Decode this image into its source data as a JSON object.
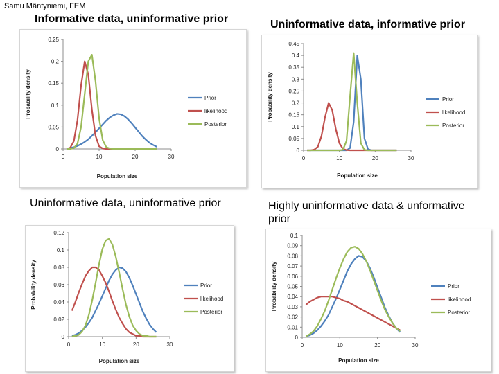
{
  "author": "Samu Mäntyniemi, FEM",
  "colors": {
    "prior": "#4f81bd",
    "likelihood": "#c0504d",
    "posterior": "#9bbb59"
  },
  "chart_data": [
    {
      "type": "line",
      "heading": "Informative data, uninformative prior",
      "xlabel": "Population size",
      "ylabel": "Probability density",
      "xlim": [
        0,
        30
      ],
      "xticks": [
        0,
        10,
        20,
        30
      ],
      "ylim": [
        0,
        0.25
      ],
      "ytick_labels": [
        "0",
        "0.05",
        "0.1",
        "0.15",
        "0.2",
        "0.25"
      ],
      "x": [
        1,
        2,
        3,
        4,
        5,
        6,
        7,
        8,
        9,
        10,
        11,
        12,
        13,
        14,
        15,
        16,
        17,
        18,
        19,
        20,
        21,
        22,
        23,
        24,
        25,
        26
      ],
      "series": [
        {
          "name": "Prior",
          "color": "#4f81bd",
          "values": [
            0.001,
            0.002,
            0.004,
            0.007,
            0.011,
            0.016,
            0.022,
            0.03,
            0.038,
            0.047,
            0.056,
            0.065,
            0.072,
            0.077,
            0.08,
            0.079,
            0.075,
            0.068,
            0.059,
            0.049,
            0.039,
            0.029,
            0.021,
            0.014,
            0.009,
            0.005
          ]
        },
        {
          "name": "likelihood",
          "color": "#c0504d",
          "values": [
            0.0,
            0.003,
            0.018,
            0.066,
            0.145,
            0.2,
            0.17,
            0.09,
            0.03,
            0.006,
            0.001,
            0.0,
            0.0,
            0.0,
            0.0,
            0.0,
            0.0,
            0.0,
            0.0,
            0.0,
            0.0,
            0.0,
            0.0,
            0.0,
            0.0,
            0.0
          ]
        },
        {
          "name": "Posterior",
          "color": "#9bbb59",
          "values": [
            0.0,
            0.0,
            0.002,
            0.012,
            0.05,
            0.125,
            0.2,
            0.215,
            0.155,
            0.07,
            0.02,
            0.004,
            0.001,
            0.0,
            0.0,
            0.0,
            0.0,
            0.0,
            0.0,
            0.0,
            0.0,
            0.0,
            0.0,
            0.0,
            0.0,
            0.0
          ]
        }
      ]
    },
    {
      "type": "line",
      "heading": "Uninformative data, informative prior",
      "xlabel": "Population size",
      "ylabel": "Probability density",
      "xlim": [
        0,
        30
      ],
      "xticks": [
        0,
        10,
        20,
        30
      ],
      "ylim": [
        0,
        0.45
      ],
      "ytick_labels": [
        "0",
        "0.05",
        "0.1",
        "0.15",
        "0.2",
        "0.25",
        "0.3",
        "0.35",
        "0.4",
        "0.45"
      ],
      "x": [
        1,
        2,
        3,
        4,
        5,
        6,
        7,
        8,
        9,
        10,
        11,
        12,
        13,
        14,
        15,
        16,
        17,
        18,
        19,
        20,
        21,
        22,
        23,
        24,
        25,
        26
      ],
      "series": [
        {
          "name": "Prior",
          "color": "#4f81bd",
          "values": [
            0.0,
            0.0,
            0.0,
            0.0,
            0.0,
            0.0,
            0.0,
            0.0,
            0.0,
            0.0,
            0.0,
            0.0,
            0.01,
            0.12,
            0.4,
            0.3,
            0.05,
            0.005,
            0.0,
            0.0,
            0.0,
            0.0,
            0.0,
            0.0,
            0.0,
            0.0
          ]
        },
        {
          "name": "likelihood",
          "color": "#c0504d",
          "values": [
            0.0,
            0.0,
            0.003,
            0.015,
            0.06,
            0.14,
            0.2,
            0.17,
            0.09,
            0.03,
            0.006,
            0.001,
            0.0,
            0.0,
            0.0,
            0.0,
            0.0,
            0.0,
            0.0,
            0.0,
            0.0,
            0.0,
            0.0,
            0.0,
            0.0,
            0.0
          ]
        },
        {
          "name": "Posterior",
          "color": "#9bbb59",
          "values": [
            0.0,
            0.0,
            0.0,
            0.0,
            0.0,
            0.0,
            0.0,
            0.0,
            0.0,
            0.0,
            0.002,
            0.04,
            0.23,
            0.41,
            0.2,
            0.03,
            0.002,
            0.0,
            0.0,
            0.0,
            0.0,
            0.0,
            0.0,
            0.0,
            0.0,
            0.0
          ]
        }
      ]
    },
    {
      "type": "line",
      "heading": "Uninformative data, uninformative prior",
      "xlabel": "Population size",
      "ylabel": "Probability density",
      "xlim": [
        0,
        30
      ],
      "xticks": [
        0,
        10,
        20,
        30
      ],
      "ylim": [
        0,
        0.12
      ],
      "ytick_labels": [
        "0",
        "0.02",
        "0.04",
        "0.06",
        "0.08",
        "0.1",
        "0.12"
      ],
      "x": [
        1,
        2,
        3,
        4,
        5,
        6,
        7,
        8,
        9,
        10,
        11,
        12,
        13,
        14,
        15,
        16,
        17,
        18,
        19,
        20,
        21,
        22,
        23,
        24,
        25,
        26
      ],
      "series": [
        {
          "name": "Prior",
          "color": "#4f81bd",
          "values": [
            0.001,
            0.002,
            0.004,
            0.007,
            0.011,
            0.016,
            0.022,
            0.03,
            0.038,
            0.047,
            0.056,
            0.065,
            0.072,
            0.077,
            0.08,
            0.079,
            0.075,
            0.068,
            0.059,
            0.049,
            0.039,
            0.029,
            0.021,
            0.014,
            0.009,
            0.005
          ]
        },
        {
          "name": "likelihood",
          "color": "#c0504d",
          "values": [
            0.03,
            0.04,
            0.051,
            0.061,
            0.07,
            0.076,
            0.08,
            0.08,
            0.077,
            0.07,
            0.062,
            0.052,
            0.041,
            0.031,
            0.022,
            0.015,
            0.009,
            0.005,
            0.003,
            0.001,
            0.001,
            0.0,
            0.0,
            0.0,
            0.0,
            0.0
          ]
        },
        {
          "name": "Posterior",
          "color": "#9bbb59",
          "values": [
            0.0,
            0.001,
            0.002,
            0.006,
            0.013,
            0.025,
            0.042,
            0.062,
            0.083,
            0.101,
            0.111,
            0.113,
            0.106,
            0.092,
            0.074,
            0.055,
            0.037,
            0.023,
            0.013,
            0.007,
            0.003,
            0.001,
            0.001,
            0.0,
            0.0,
            0.0
          ]
        }
      ]
    },
    {
      "type": "line",
      "heading": "Highly uninformative data & unformative prior",
      "xlabel": "Population size",
      "ylabel": "Probability density",
      "xlim": [
        0,
        30
      ],
      "xticks": [
        0,
        10,
        20,
        30
      ],
      "ylim": [
        0,
        0.1
      ],
      "ytick_labels": [
        "0",
        "0.01",
        "0.02",
        "0.03",
        "0.04",
        "0.05",
        "0.06",
        "0.07",
        "0.08",
        "0.09",
        "0.1"
      ],
      "x": [
        1,
        2,
        3,
        4,
        5,
        6,
        7,
        8,
        9,
        10,
        11,
        12,
        13,
        14,
        15,
        16,
        17,
        18,
        19,
        20,
        21,
        22,
        23,
        24,
        25,
        26
      ],
      "series": [
        {
          "name": "Prior",
          "color": "#4f81bd",
          "values": [
            0.001,
            0.002,
            0.004,
            0.007,
            0.011,
            0.016,
            0.022,
            0.03,
            0.038,
            0.047,
            0.056,
            0.065,
            0.072,
            0.077,
            0.08,
            0.079,
            0.075,
            0.068,
            0.059,
            0.049,
            0.039,
            0.029,
            0.021,
            0.014,
            0.009,
            0.005
          ]
        },
        {
          "name": "likelihood",
          "color": "#c0504d",
          "values": [
            0.032,
            0.035,
            0.037,
            0.039,
            0.04,
            0.04,
            0.04,
            0.04,
            0.039,
            0.038,
            0.036,
            0.035,
            0.033,
            0.031,
            0.029,
            0.027,
            0.025,
            0.023,
            0.021,
            0.019,
            0.017,
            0.015,
            0.013,
            0.011,
            0.009,
            0.007
          ]
        },
        {
          "name": "Posterior",
          "color": "#9bbb59",
          "values": [
            0.001,
            0.003,
            0.006,
            0.011,
            0.018,
            0.026,
            0.036,
            0.047,
            0.058,
            0.068,
            0.077,
            0.084,
            0.088,
            0.089,
            0.087,
            0.082,
            0.075,
            0.066,
            0.056,
            0.046,
            0.036,
            0.027,
            0.02,
            0.014,
            0.009,
            0.006
          ]
        }
      ]
    }
  ]
}
